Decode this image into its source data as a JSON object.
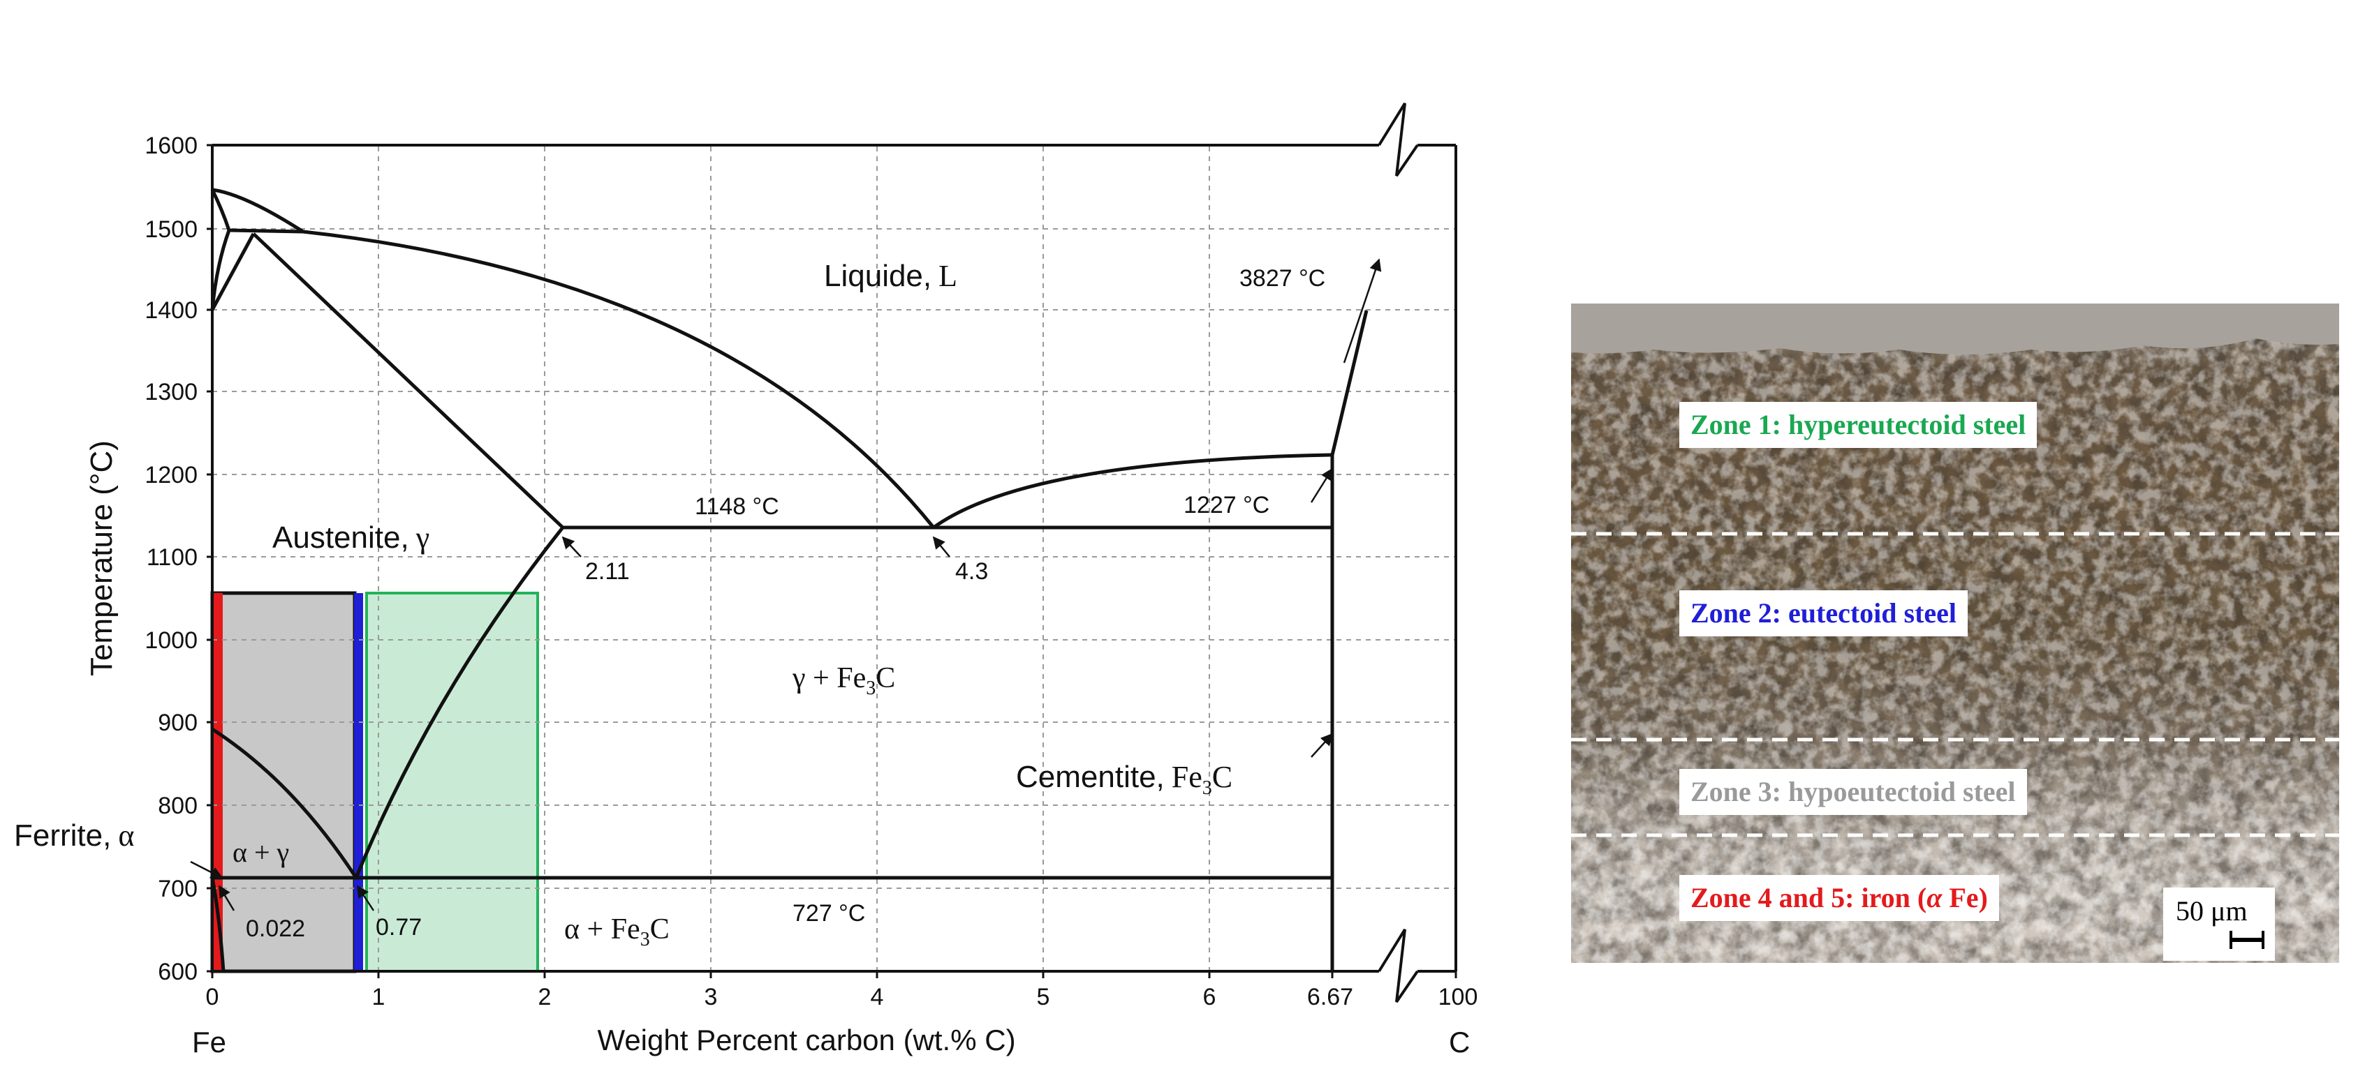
{
  "phase_diagram": {
    "y_axis": {
      "label": "Temperature (°C)",
      "ticks": [
        "1600",
        "1500",
        "1400",
        "1300",
        "1200",
        "1100",
        "1000",
        "900",
        "800",
        "700",
        "600"
      ]
    },
    "x_axis": {
      "label": "Weight Percent carbon (wt.% C)",
      "ticks": [
        "0",
        "1",
        "2",
        "3",
        "4",
        "5",
        "6",
        "6.67",
        "100"
      ],
      "left_element": "Fe",
      "right_element": "C"
    },
    "regions": {
      "liquid_name": "Liquide,",
      "liquid_symbol": "L",
      "austenite_name": "Austenite,",
      "austenite_symbol": "γ",
      "gamma_fe3c": "γ + Fe",
      "gamma_fe3c_sub": "3",
      "gamma_fe3c_tail": "C",
      "cementite_name": "Cementite,",
      "cementite_symbol": "Fe",
      "cementite_sub": "3",
      "cementite_tail": "C",
      "ferrite_name": "Ferrite,",
      "ferrite_symbol": "α",
      "alpha_gamma": "α + γ",
      "alpha_fe3c": "α + Fe",
      "alpha_fe3c_sub": "3",
      "alpha_fe3c_tail": "C"
    },
    "annotations": {
      "t_3827": "3827 °C",
      "t_1227": "1227 °C",
      "t_1148": "1148 °C",
      "t_727": "727 °C",
      "c_211": "2.11",
      "c_43": "4.3",
      "c_0022": "0.022",
      "c_077": "0.77"
    },
    "colors": {
      "iron_bar": "#e41a1c",
      "eutectoid_bar": "#1f1fd6",
      "hypoeutectoid_fill": "#c8c8c8",
      "hypereutectoid_fill": "#bfe8cf",
      "hypereutectoid_edge": "#22b35a"
    }
  },
  "micrograph": {
    "zones": [
      {
        "label": "Zone 1: hypereutectoid steel",
        "color": "#1aa851"
      },
      {
        "label": "Zone 2: eutectoid steel",
        "color": "#1f1fd6"
      },
      {
        "label": "Zone 3: hypoeutectoid steel",
        "color": "#9a9a9a"
      },
      {
        "label": "Zone 4 and 5: iron (",
        "symbol": "α",
        "tail": " Fe)",
        "color": "#e41a1c"
      }
    ],
    "scale_bar": {
      "value": "50",
      "unit": "μm"
    }
  }
}
